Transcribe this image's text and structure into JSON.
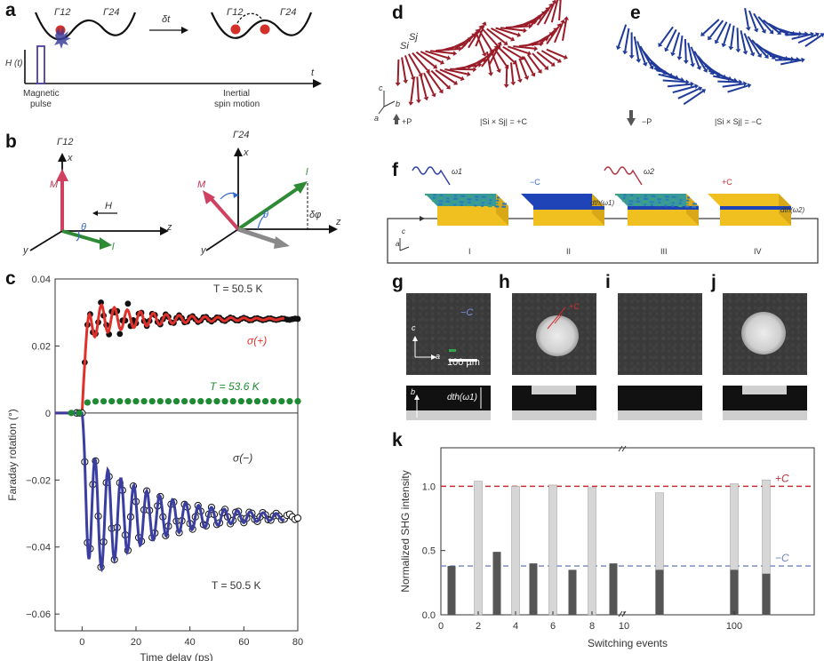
{
  "panels": {
    "a": {
      "letter": "a",
      "gamma12": "Γ12",
      "gamma24": "Γ24",
      "dt": "δt",
      "ht": "H (t)",
      "t": "t",
      "mag_pulse": [
        "Magnetic",
        "pulse"
      ],
      "inertial": [
        "Inertial",
        "spin motion"
      ]
    },
    "b": {
      "letter": "b",
      "gamma12": "Γ12",
      "gamma24": "Γ24",
      "x": "x",
      "y": "y",
      "z": "z",
      "M": "M",
      "H": "H",
      "l": "l",
      "theta": "θ",
      "dphi": "δφ"
    },
    "c": {
      "letter": "c"
    },
    "d": {
      "letter": "d",
      "si": "Si",
      "sj": "Sj",
      "c": "c",
      "b": "b",
      "a": "a",
      "p": "+P",
      "cross": "|Si × Sj| = +C"
    },
    "e": {
      "letter": "e",
      "p": "−P",
      "cross": "|Si × Sj| = −C"
    },
    "f": {
      "letter": "f",
      "w1": "ω1",
      "w2": "ω2",
      "minusC": "−C",
      "plusC": "+C",
      "dth1": "dth(ω1)",
      "dth2": "dth(ω2)",
      "c": "c",
      "a": "a",
      "roman": [
        "I",
        "II",
        "III",
        "IV"
      ]
    },
    "g": {
      "letter": "g",
      "minusC": "−C",
      "c": "c",
      "a": "a",
      "b": "b",
      "scale": "100 µm",
      "dth": "dth(ω1)"
    },
    "h": {
      "letter": "h",
      "plusC": "+C"
    },
    "i": {
      "letter": "i"
    },
    "j": {
      "letter": "j"
    },
    "k": {
      "letter": "k",
      "plusC": "+C",
      "minusC": "−C"
    }
  },
  "chart_data": [
    {
      "type": "line",
      "panel": "c",
      "xlabel": "Time delay (ps)",
      "ylabel": "Faraday rotation (°)",
      "xlim": [
        -10,
        80
      ],
      "ylim": [
        -0.065,
        0.04
      ],
      "xticks": [
        0,
        20,
        40,
        60,
        80
      ],
      "yticks": [
        0.04,
        0.02,
        0,
        -0.02,
        -0.04,
        -0.06
      ],
      "ytick_labels": [
        "0.04",
        "0.02",
        "0",
        "−0.02",
        "−0.04",
        "−0.06"
      ],
      "series": [
        {
          "name": "σ(+)",
          "temperature": "T = 50.5 K",
          "color": "#e0302a",
          "marker": "filled-black",
          "model": {
            "offset": 0.028,
            "amp": -0.006,
            "period": 4.8,
            "decay": 22,
            "onset": 0
          }
        },
        {
          "name": "σ(−)",
          "temperature": "T = 50.5 K",
          "color": "#3a3ea0",
          "marker": "open-black",
          "model": {
            "offset": -0.031,
            "amp": 0.021,
            "period": 4.8,
            "decay": 24,
            "onset": 0
          }
        },
        {
          "name": "T = 53.6 K",
          "color": "#1a8a30",
          "marker": "filled-green",
          "model": {
            "offset": 0.002,
            "amp": 0,
            "period": 4.8,
            "decay": 20,
            "onset": 0
          }
        }
      ]
    },
    {
      "type": "bar",
      "panel": "k",
      "xlabel": "Switching events",
      "ylabel": "Normalized SHG intensity",
      "ylim": [
        0,
        1.3
      ],
      "yticks": [
        0.0,
        0.5,
        1.0
      ],
      "ytick_labels": [
        "0.0",
        "0.5",
        "1.0"
      ],
      "xtick_labels": [
        "0",
        "2",
        "4",
        "6",
        "8",
        "10",
        "100"
      ],
      "ref_lines": [
        {
          "label": "+C",
          "value": 1.0,
          "color": "#c0303a"
        },
        {
          "label": "−C",
          "value": 0.38,
          "color": "#7080c0"
        }
      ],
      "dark_color": "#555555",
      "light_color": "#d6d6d6",
      "events": [
        {
          "x": 1,
          "dark": 0.38,
          "light": null
        },
        {
          "x": 2,
          "dark": null,
          "light": 1.04
        },
        {
          "x": 3,
          "dark": 0.49,
          "light": null
        },
        {
          "x": 4,
          "dark": null,
          "light": 1.0
        },
        {
          "x": 5,
          "dark": 0.4,
          "light": null
        },
        {
          "x": 6,
          "dark": null,
          "light": 1.01
        },
        {
          "x": 7,
          "dark": 0.35,
          "light": null
        },
        {
          "x": 8,
          "dark": null,
          "light": 0.99
        },
        {
          "x": 9,
          "dark": 0.4,
          "light": null
        },
        {
          "x": "b1",
          "dark": 0.35,
          "light": 0.95
        },
        {
          "x": "100",
          "dark": 0.35,
          "light": 1.02
        },
        {
          "x": "b2",
          "dark": 0.32,
          "light": 1.05
        }
      ]
    }
  ]
}
